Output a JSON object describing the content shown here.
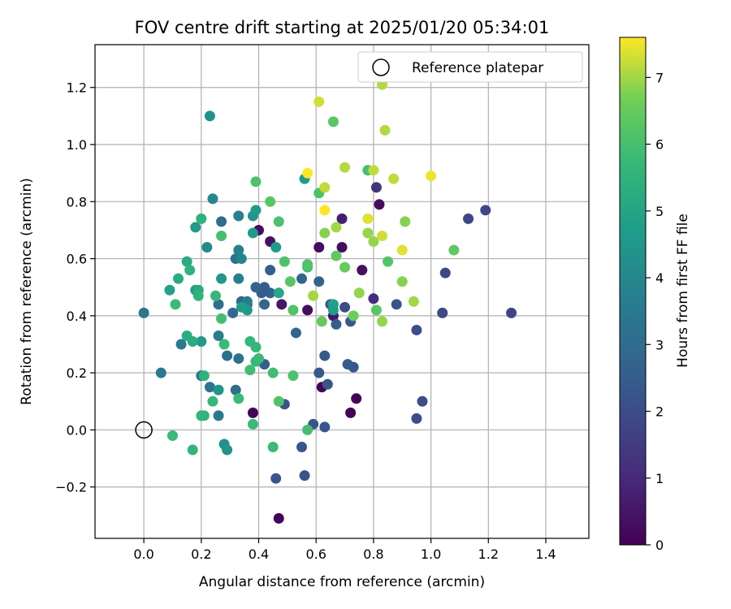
{
  "chart_data": {
    "type": "scatter",
    "title": "FOV centre drift starting at 2025/01/20 05:34:01",
    "xlabel": "Angular distance from reference (arcmin)",
    "ylabel": "Rotation from reference (arcmin)",
    "xlim": [
      -0.17,
      1.55
    ],
    "ylim": [
      -0.38,
      1.35
    ],
    "xticks": [
      0.0,
      0.2,
      0.4,
      0.6,
      0.8,
      1.0,
      1.2,
      1.4
    ],
    "xtick_labels": [
      "0.0",
      "0.2",
      "0.4",
      "0.6",
      "0.8",
      "1.0",
      "1.2",
      "1.4"
    ],
    "yticks": [
      -0.2,
      0.0,
      0.2,
      0.4,
      0.6,
      0.8,
      1.0,
      1.2
    ],
    "ytick_labels": [
      "−0.2",
      "0.0",
      "0.2",
      "0.4",
      "0.6",
      "0.8",
      "1.0",
      "1.2"
    ],
    "grid": true,
    "legend": {
      "placement": "top-right",
      "label": "Reference platepar"
    },
    "reference_point": {
      "x": 0.0,
      "y": 0.0
    },
    "colorbar": {
      "label": "Hours from first FF file",
      "min": 0,
      "max": 7.6,
      "colormap": "viridis",
      "ticks": [
        0,
        1,
        2,
        3,
        4,
        5,
        6,
        7
      ],
      "tick_labels": [
        "0",
        "1",
        "2",
        "3",
        "4",
        "5",
        "6",
        "7"
      ]
    },
    "points": [
      {
        "x": 0.47,
        "y": -0.31,
        "c": 0.1
      },
      {
        "x": 0.38,
        "y": 0.06,
        "c": 0.1
      },
      {
        "x": 0.62,
        "y": 0.15,
        "c": 0.1
      },
      {
        "x": 0.72,
        "y": 0.06,
        "c": 0.1
      },
      {
        "x": 0.74,
        "y": 0.11,
        "c": 0.1
      },
      {
        "x": 0.4,
        "y": 0.7,
        "c": 0.3
      },
      {
        "x": 0.44,
        "y": 0.66,
        "c": 0.4
      },
      {
        "x": 0.57,
        "y": 0.42,
        "c": 0.3
      },
      {
        "x": 0.61,
        "y": 0.64,
        "c": 0.3
      },
      {
        "x": 0.69,
        "y": 0.64,
        "c": 0.3
      },
      {
        "x": 0.76,
        "y": 0.56,
        "c": 0.4
      },
      {
        "x": 0.82,
        "y": 0.79,
        "c": 0.3
      },
      {
        "x": 0.69,
        "y": 0.74,
        "c": 0.7
      },
      {
        "x": 0.66,
        "y": 0.4,
        "c": 0.5
      },
      {
        "x": 0.48,
        "y": 0.44,
        "c": 0.5
      },
      {
        "x": 0.81,
        "y": 0.85,
        "c": 1.3
      },
      {
        "x": 0.8,
        "y": 0.46,
        "c": 1.1
      },
      {
        "x": 0.46,
        "y": -0.17,
        "c": 2.3
      },
      {
        "x": 0.56,
        "y": -0.16,
        "c": 2.2
      },
      {
        "x": 0.55,
        "y": -0.06,
        "c": 2.3
      },
      {
        "x": 0.63,
        "y": 0.01,
        "c": 2.3
      },
      {
        "x": 0.59,
        "y": 0.02,
        "c": 2.3
      },
      {
        "x": 0.49,
        "y": 0.09,
        "c": 2.2
      },
      {
        "x": 0.64,
        "y": 0.16,
        "c": 2.3
      },
      {
        "x": 0.61,
        "y": 0.2,
        "c": 2.4
      },
      {
        "x": 0.63,
        "y": 0.26,
        "c": 2.4
      },
      {
        "x": 0.73,
        "y": 0.22,
        "c": 2.3
      },
      {
        "x": 0.71,
        "y": 0.23,
        "c": 2.4
      },
      {
        "x": 0.95,
        "y": 0.04,
        "c": 2.0
      },
      {
        "x": 0.97,
        "y": 0.1,
        "c": 2.0
      },
      {
        "x": 0.95,
        "y": 0.35,
        "c": 2.0
      },
      {
        "x": 1.04,
        "y": 0.41,
        "c": 1.9
      },
      {
        "x": 1.05,
        "y": 0.55,
        "c": 1.8
      },
      {
        "x": 1.13,
        "y": 0.74,
        "c": 1.8
      },
      {
        "x": 1.19,
        "y": 0.77,
        "c": 1.8
      },
      {
        "x": 1.28,
        "y": 0.41,
        "c": 1.8
      },
      {
        "x": 0.88,
        "y": 0.44,
        "c": 2.2
      },
      {
        "x": 0.67,
        "y": 0.37,
        "c": 2.5
      },
      {
        "x": 0.7,
        "y": 0.43,
        "c": 2.0
      },
      {
        "x": 0.72,
        "y": 0.38,
        "c": 2.4
      },
      {
        "x": 0.65,
        "y": 0.44,
        "c": 2.5
      },
      {
        "x": 0.61,
        "y": 0.52,
        "c": 2.7
      },
      {
        "x": 0.55,
        "y": 0.53,
        "c": 2.8
      },
      {
        "x": 0.53,
        "y": 0.34,
        "c": 2.8
      },
      {
        "x": 0.42,
        "y": 0.5,
        "c": 2.5
      },
      {
        "x": 0.41,
        "y": 0.48,
        "c": 2.5
      },
      {
        "x": 0.44,
        "y": 0.48,
        "c": 2.6
      },
      {
        "x": 0.44,
        "y": 0.56,
        "c": 2.6
      },
      {
        "x": 0.42,
        "y": 0.23,
        "c": 2.5
      },
      {
        "x": 0.42,
        "y": 0.44,
        "c": 2.8
      },
      {
        "x": 0.39,
        "y": 0.5,
        "c": 2.7
      },
      {
        "x": 0.36,
        "y": 0.44,
        "c": 2.9
      },
      {
        "x": 0.31,
        "y": 0.41,
        "c": 2.9
      },
      {
        "x": 0.32,
        "y": 0.6,
        "c": 3.1
      },
      {
        "x": 0.26,
        "y": 0.44,
        "c": 3.1
      },
      {
        "x": 0.27,
        "y": 0.73,
        "c": 3.0
      },
      {
        "x": 0.34,
        "y": 0.45,
        "c": 2.9
      },
      {
        "x": 0.29,
        "y": 0.26,
        "c": 3.1
      },
      {
        "x": 0.33,
        "y": 0.25,
        "c": 3.2
      },
      {
        "x": 0.23,
        "y": 0.15,
        "c": 3.3
      },
      {
        "x": 0.32,
        "y": 0.14,
        "c": 3.1
      },
      {
        "x": 0.26,
        "y": 0.05,
        "c": 3.4
      },
      {
        "x": 0.2,
        "y": 0.19,
        "c": 3.4
      },
      {
        "x": 0.06,
        "y": 0.2,
        "c": 3.5
      },
      {
        "x": 0.13,
        "y": 0.3,
        "c": 3.5
      },
      {
        "x": 0.0,
        "y": 0.41,
        "c": 3.4
      },
      {
        "x": 0.26,
        "y": 0.33,
        "c": 3.6
      },
      {
        "x": 0.34,
        "y": 0.6,
        "c": 3.9
      },
      {
        "x": 0.33,
        "y": 0.75,
        "c": 3.7
      },
      {
        "x": 0.36,
        "y": 0.45,
        "c": 3.7
      },
      {
        "x": 0.33,
        "y": 0.53,
        "c": 3.7
      },
      {
        "x": 0.33,
        "y": 0.63,
        "c": 3.7
      },
      {
        "x": 0.22,
        "y": 0.64,
        "c": 4.1
      },
      {
        "x": 0.24,
        "y": 0.81,
        "c": 4.0
      },
      {
        "x": 0.23,
        "y": 1.1,
        "c": 4.3
      },
      {
        "x": 0.38,
        "y": 0.75,
        "c": 4.4
      },
      {
        "x": 0.39,
        "y": 0.77,
        "c": 4.6
      },
      {
        "x": 0.38,
        "y": 0.69,
        "c": 4.6
      },
      {
        "x": 0.46,
        "y": 0.64,
        "c": 4.7
      },
      {
        "x": 0.56,
        "y": 0.88,
        "c": 4.6
      },
      {
        "x": 0.27,
        "y": 0.53,
        "c": 4.5
      },
      {
        "x": 0.18,
        "y": 0.71,
        "c": 4.6
      },
      {
        "x": 0.26,
        "y": 0.14,
        "c": 4.4
      },
      {
        "x": 0.28,
        "y": -0.05,
        "c": 4.3
      },
      {
        "x": 0.29,
        "y": -0.07,
        "c": 4.4
      },
      {
        "x": 0.36,
        "y": 0.42,
        "c": 4.6
      },
      {
        "x": 0.34,
        "y": 0.43,
        "c": 4.8
      },
      {
        "x": 0.2,
        "y": 0.31,
        "c": 4.6
      },
      {
        "x": 0.18,
        "y": 0.49,
        "c": 4.7
      },
      {
        "x": 0.66,
        "y": 0.44,
        "c": 4.9
      },
      {
        "x": 0.66,
        "y": 0.42,
        "c": 4.7
      },
      {
        "x": 0.47,
        "y": 0.48,
        "c": 5.1
      },
      {
        "x": 0.09,
        "y": 0.49,
        "c": 4.9
      },
      {
        "x": 0.12,
        "y": 0.53,
        "c": 5.2
      },
      {
        "x": 0.15,
        "y": 0.59,
        "c": 5.2
      },
      {
        "x": 0.19,
        "y": 0.49,
        "c": 5.2
      },
      {
        "x": 0.19,
        "y": 0.47,
        "c": 5.5
      },
      {
        "x": 0.17,
        "y": 0.31,
        "c": 5.3
      },
      {
        "x": 0.15,
        "y": 0.33,
        "c": 5.3
      },
      {
        "x": 0.16,
        "y": 0.56,
        "c": 5.5
      },
      {
        "x": 0.2,
        "y": 0.74,
        "c": 5.5
      },
      {
        "x": 0.2,
        "y": 0.05,
        "c": 5.7
      },
      {
        "x": 0.21,
        "y": 0.05,
        "c": 5.6
      },
      {
        "x": 0.24,
        "y": 0.1,
        "c": 5.7
      },
      {
        "x": 0.21,
        "y": 0.19,
        "c": 5.5
      },
      {
        "x": 0.17,
        "y": -0.07,
        "c": 5.6
      },
      {
        "x": 0.1,
        "y": -0.02,
        "c": 5.8
      },
      {
        "x": 0.11,
        "y": 0.44,
        "c": 5.8
      },
      {
        "x": 0.25,
        "y": 0.47,
        "c": 5.7
      },
      {
        "x": 0.28,
        "y": 0.3,
        "c": 5.8
      },
      {
        "x": 0.33,
        "y": 0.11,
        "c": 5.8
      },
      {
        "x": 0.38,
        "y": 0.02,
        "c": 5.8
      },
      {
        "x": 0.37,
        "y": 0.31,
        "c": 5.7
      },
      {
        "x": 0.39,
        "y": 0.29,
        "c": 5.7
      },
      {
        "x": 0.39,
        "y": 0.24,
        "c": 5.7
      },
      {
        "x": 0.4,
        "y": 0.25,
        "c": 5.8
      },
      {
        "x": 0.37,
        "y": 0.21,
        "c": 5.9
      },
      {
        "x": 0.45,
        "y": 0.2,
        "c": 5.9
      },
      {
        "x": 0.45,
        "y": -0.06,
        "c": 5.8
      },
      {
        "x": 0.47,
        "y": 0.1,
        "c": 6.2
      },
      {
        "x": 0.52,
        "y": 0.19,
        "c": 6.1
      },
      {
        "x": 0.57,
        "y": 0.0,
        "c": 6.0
      },
      {
        "x": 0.57,
        "y": 0.57,
        "c": 6.0
      },
      {
        "x": 0.57,
        "y": 0.58,
        "c": 6.2
      },
      {
        "x": 0.52,
        "y": 0.42,
        "c": 6.2
      },
      {
        "x": 0.49,
        "y": 0.59,
        "c": 6.1
      },
      {
        "x": 0.51,
        "y": 0.52,
        "c": 6.3
      },
      {
        "x": 0.47,
        "y": 0.73,
        "c": 6.1
      },
      {
        "x": 0.44,
        "y": 0.8,
        "c": 6.3
      },
      {
        "x": 0.39,
        "y": 0.87,
        "c": 6.1
      },
      {
        "x": 0.27,
        "y": 0.39,
        "c": 6.0
      },
      {
        "x": 0.27,
        "y": 0.68,
        "c": 6.0
      },
      {
        "x": 0.66,
        "y": 1.08,
        "c": 6.3
      },
      {
        "x": 0.61,
        "y": 0.83,
        "c": 6.1
      },
      {
        "x": 0.67,
        "y": 0.61,
        "c": 6.4
      },
      {
        "x": 0.7,
        "y": 0.57,
        "c": 6.5
      },
      {
        "x": 0.62,
        "y": 0.38,
        "c": 6.5
      },
      {
        "x": 0.78,
        "y": 0.91,
        "c": 6.0
      },
      {
        "x": 0.81,
        "y": 0.42,
        "c": 6.3
      },
      {
        "x": 0.85,
        "y": 0.59,
        "c": 6.2
      },
      {
        "x": 1.08,
        "y": 0.63,
        "c": 6.4
      },
      {
        "x": 0.73,
        "y": 0.4,
        "c": 6.6
      },
      {
        "x": 0.75,
        "y": 0.48,
        "c": 6.9
      },
      {
        "x": 0.83,
        "y": 0.38,
        "c": 6.9
      },
      {
        "x": 0.8,
        "y": 0.66,
        "c": 6.9
      },
      {
        "x": 0.78,
        "y": 0.69,
        "c": 6.9
      },
      {
        "x": 0.9,
        "y": 0.52,
        "c": 6.8
      },
      {
        "x": 0.91,
        "y": 0.73,
        "c": 6.8
      },
      {
        "x": 0.94,
        "y": 0.45,
        "c": 7.0
      },
      {
        "x": 0.63,
        "y": 0.69,
        "c": 6.8
      },
      {
        "x": 0.67,
        "y": 0.71,
        "c": 7.0
      },
      {
        "x": 0.59,
        "y": 0.47,
        "c": 7.0
      },
      {
        "x": 0.7,
        "y": 0.92,
        "c": 7.1
      },
      {
        "x": 0.84,
        "y": 1.05,
        "c": 7.1
      },
      {
        "x": 0.8,
        "y": 0.91,
        "c": 7.2
      },
      {
        "x": 0.87,
        "y": 0.88,
        "c": 7.2
      },
      {
        "x": 0.63,
        "y": 0.85,
        "c": 7.2
      },
      {
        "x": 0.78,
        "y": 0.74,
        "c": 7.4
      },
      {
        "x": 0.83,
        "y": 0.68,
        "c": 7.3
      },
      {
        "x": 0.9,
        "y": 0.63,
        "c": 7.4
      },
      {
        "x": 0.61,
        "y": 1.15,
        "c": 7.3
      },
      {
        "x": 0.83,
        "y": 1.21,
        "c": 7.1
      },
      {
        "x": 1.0,
        "y": 0.89,
        "c": 7.5
      },
      {
        "x": 0.57,
        "y": 0.9,
        "c": 7.6
      },
      {
        "x": 0.63,
        "y": 0.77,
        "c": 7.6
      }
    ]
  }
}
